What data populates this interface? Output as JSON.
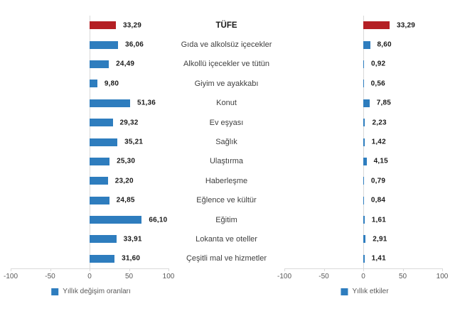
{
  "chart_data": {
    "type": "bar",
    "orientation": "horizontal",
    "layout": "dual-panel tornado, shared category labels in center column",
    "categories": [
      "TÜFE",
      "Gıda ve alkolsüz içecekler",
      "Alkollü içecekler ve tütün",
      "Giyim ve ayakkabı",
      "Konut",
      "Ev eşyası",
      "Sağlık",
      "Ulaştırma",
      "Haberleşme",
      "Eğlence ve kültür",
      "Eğitim",
      "Lokanta ve oteller",
      "Çeşitli mal ve hizmetler"
    ],
    "series": [
      {
        "name": "Yıllık değişim oranları",
        "panel": "left",
        "values": [
          33.29,
          36.06,
          24.49,
          9.8,
          51.36,
          29.32,
          35.21,
          25.3,
          23.2,
          24.85,
          66.1,
          33.91,
          31.6
        ],
        "labels": [
          "33,29",
          "36,06",
          "24,49",
          "9,80",
          "51,36",
          "29,32",
          "35,21",
          "25,30",
          "23,20",
          "24,85",
          "66,10",
          "33,91",
          "31,60"
        ]
      },
      {
        "name": "Yıllık etkiler",
        "panel": "right",
        "values": [
          33.29,
          8.6,
          0.92,
          0.56,
          7.85,
          2.23,
          1.42,
          4.15,
          0.79,
          0.84,
          1.61,
          2.91,
          1.41
        ],
        "labels": [
          "33,29",
          "8,60",
          "0,92",
          "0,56",
          "7,85",
          "2,23",
          "1,42",
          "4,15",
          "0,79",
          "0,84",
          "1,61",
          "2,91",
          "1,41"
        ]
      }
    ],
    "xlim": [
      -100,
      100
    ],
    "x_ticks": [
      -100,
      -50,
      0,
      50,
      100
    ],
    "x_tick_labels": [
      "-100",
      "-50",
      "0",
      "50",
      "100"
    ],
    "highlight_category": "TÜFE",
    "grid": false,
    "legend_position": "bottom, one legend centered under each panel",
    "colors": {
      "bar": "#2e7dbe",
      "highlight": "#b41f24",
      "axis": "#d9d9d9",
      "tick_text": "#595959",
      "category_text": "#3f3f3f",
      "value_text": "#1a1a1a"
    }
  }
}
